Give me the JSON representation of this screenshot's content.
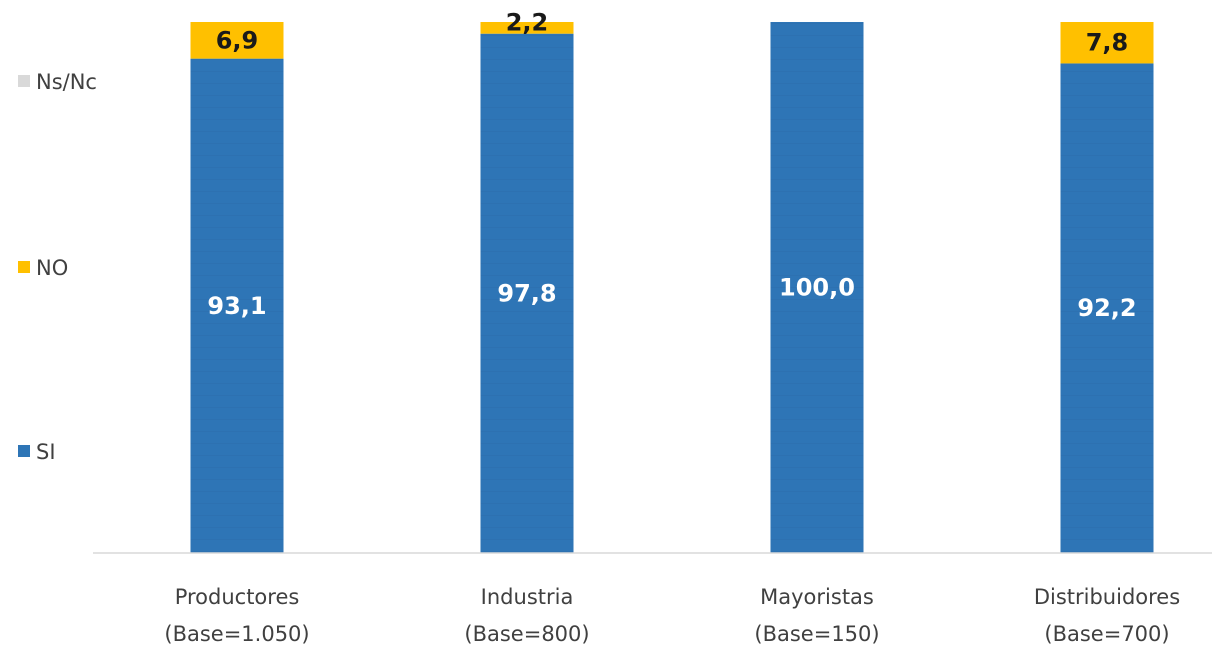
{
  "chart_data": {
    "type": "bar",
    "stacked": true,
    "categories": [
      [
        "Productores",
        "(Base=1.050)"
      ],
      [
        "Industria",
        "(Base=800)"
      ],
      [
        "Mayoristas",
        "(Base=150)"
      ],
      [
        "Distribuidores",
        "(Base=700)"
      ]
    ],
    "series": [
      {
        "name": "SI",
        "color": "#2E75B6",
        "values": [
          93.1,
          97.8,
          100.0,
          92.2
        ],
        "labels": [
          "93,1",
          "97,8",
          "100,0",
          "92,2"
        ]
      },
      {
        "name": "NO",
        "color": "#FFC000",
        "values": [
          6.9,
          2.2,
          0,
          7.8
        ],
        "labels": [
          "6,9",
          "2,2",
          "",
          "7,8"
        ]
      },
      {
        "name": "Ns/Nc",
        "color": "#D9D9D9",
        "values": [
          0,
          0,
          0,
          0
        ],
        "labels": [
          "",
          "",
          "",
          ""
        ]
      }
    ],
    "legend_order": [
      "Ns/Nc",
      "NO",
      "SI"
    ],
    "legend_position": "left",
    "ylim": [
      0,
      100
    ],
    "grid": false,
    "title": "",
    "xlabel": "",
    "ylabel": ""
  }
}
